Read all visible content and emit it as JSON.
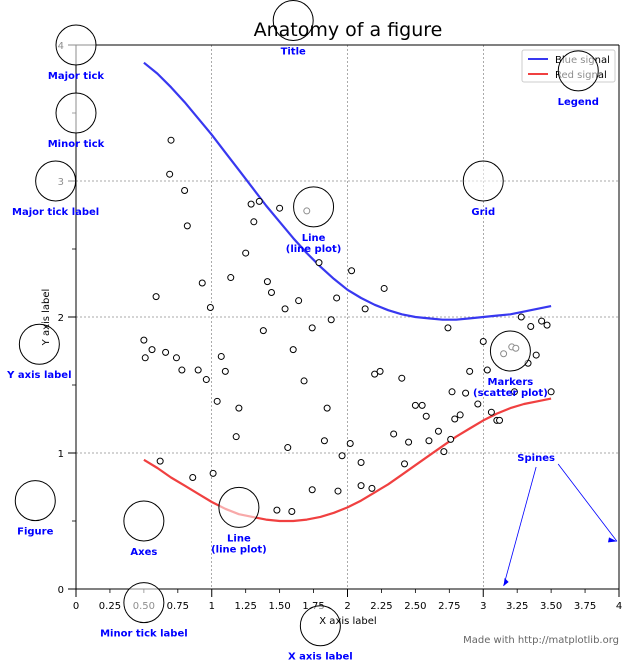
{
  "chart_data": {
    "type": "line",
    "title": "Anatomy of a figure",
    "xlabel": "X axis label",
    "ylabel": "Y axis label",
    "xlim": [
      0,
      4
    ],
    "ylim": [
      0,
      4
    ],
    "grid": true,
    "legend_position": "top-right",
    "major_x_ticks": [
      0,
      1,
      2,
      3,
      4
    ],
    "minor_x_ticks": [
      0.25,
      0.5,
      0.75,
      1.25,
      1.5,
      1.75,
      2.25,
      2.5,
      2.75,
      3.25,
      3.5,
      3.75
    ],
    "major_y_ticks": [
      0,
      1,
      2,
      3,
      4
    ],
    "minor_y_ticks": [
      0.5,
      1.5,
      2.5,
      3.5
    ],
    "x_tick_labels": [
      "0",
      "0.25",
      "0.50",
      "0.75",
      "1",
      "1.25",
      "1.50",
      "1.75",
      "2",
      "2.25",
      "2.50",
      "2.75",
      "3",
      "3.25",
      "3.50",
      "3.75",
      "4"
    ],
    "y_tick_labels": [
      "0",
      "1",
      "2",
      "3",
      "4"
    ],
    "series": [
      {
        "name": "Blue signal",
        "color": "#3838f0",
        "x": [
          0.5,
          0.6,
          0.7,
          0.8,
          0.9,
          1.0,
          1.1,
          1.2,
          1.3,
          1.4,
          1.5,
          1.6,
          1.7,
          1.8,
          1.9,
          2.0,
          2.1,
          2.2,
          2.3,
          2.4,
          2.5,
          2.6,
          2.7,
          2.8,
          2.9,
          3.0,
          3.1,
          3.2,
          3.3,
          3.4,
          3.5
        ],
        "y": [
          3.87,
          3.79,
          3.69,
          3.58,
          3.46,
          3.34,
          3.21,
          3.08,
          2.95,
          2.82,
          2.7,
          2.58,
          2.47,
          2.37,
          2.28,
          2.2,
          2.14,
          2.09,
          2.05,
          2.02,
          2.0,
          1.99,
          1.98,
          1.98,
          1.99,
          2.0,
          2.01,
          2.02,
          2.04,
          2.06,
          2.08
        ]
      },
      {
        "name": "Red signal",
        "color": "#f04040",
        "x": [
          0.5,
          0.6,
          0.7,
          0.8,
          0.9,
          1.0,
          1.1,
          1.2,
          1.3,
          1.4,
          1.5,
          1.6,
          1.7,
          1.8,
          1.9,
          2.0,
          2.1,
          2.2,
          2.3,
          2.4,
          2.5,
          2.6,
          2.7,
          2.8,
          2.9,
          3.0,
          3.1,
          3.2,
          3.3,
          3.4,
          3.5
        ],
        "y": [
          0.95,
          0.89,
          0.82,
          0.76,
          0.7,
          0.64,
          0.59,
          0.55,
          0.53,
          0.51,
          0.5,
          0.5,
          0.51,
          0.53,
          0.56,
          0.6,
          0.65,
          0.71,
          0.77,
          0.84,
          0.91,
          0.98,
          1.05,
          1.12,
          1.18,
          1.24,
          1.29,
          1.33,
          1.36,
          1.38,
          1.4
        ]
      }
    ],
    "scatter": {
      "name": "Markers",
      "points": [
        [
          0.7,
          3.3
        ],
        [
          0.69,
          3.05
        ],
        [
          0.8,
          2.93
        ],
        [
          0.82,
          2.67
        ],
        [
          0.59,
          2.15
        ],
        [
          0.93,
          2.25
        ],
        [
          0.5,
          1.83
        ],
        [
          0.51,
          1.7
        ],
        [
          0.56,
          1.76
        ],
        [
          0.66,
          1.74
        ],
        [
          0.74,
          1.7
        ],
        [
          0.78,
          1.61
        ],
        [
          0.9,
          1.61
        ],
        [
          0.96,
          1.54
        ],
        [
          1.04,
          1.38
        ],
        [
          1.07,
          1.71
        ],
        [
          1.1,
          1.6
        ],
        [
          0.99,
          2.07
        ],
        [
          1.14,
          2.29
        ],
        [
          1.2,
          1.33
        ],
        [
          1.25,
          2.47
        ],
        [
          1.29,
          2.83
        ],
        [
          1.31,
          2.7
        ],
        [
          1.35,
          2.85
        ],
        [
          1.38,
          1.9
        ],
        [
          1.41,
          2.26
        ],
        [
          1.44,
          2.18
        ],
        [
          1.5,
          2.8
        ],
        [
          1.54,
          2.06
        ],
        [
          1.6,
          1.76
        ],
        [
          1.64,
          2.12
        ],
        [
          1.7,
          2.78
        ],
        [
          1.74,
          1.92
        ],
        [
          1.68,
          1.53
        ],
        [
          1.79,
          2.4
        ],
        [
          1.85,
          1.33
        ],
        [
          1.88,
          1.98
        ],
        [
          1.92,
          2.14
        ],
        [
          1.96,
          0.98
        ],
        [
          2.03,
          2.34
        ],
        [
          2.1,
          0.93
        ],
        [
          2.13,
          2.06
        ],
        [
          2.2,
          1.58
        ],
        [
          2.24,
          1.6
        ],
        [
          2.27,
          2.21
        ],
        [
          2.34,
          1.14
        ],
        [
          2.4,
          1.55
        ],
        [
          2.45,
          1.08
        ],
        [
          2.5,
          1.35
        ],
        [
          2.55,
          1.35
        ],
        [
          2.58,
          1.27
        ],
        [
          2.6,
          1.09
        ],
        [
          2.67,
          1.16
        ],
        [
          2.71,
          1.01
        ],
        [
          2.74,
          1.92
        ],
        [
          2.76,
          1.1
        ],
        [
          2.79,
          1.25
        ],
        [
          2.83,
          1.28
        ],
        [
          2.87,
          1.44
        ],
        [
          2.9,
          1.6
        ],
        [
          2.96,
          1.36
        ],
        [
          3.0,
          1.82
        ],
        [
          3.03,
          1.61
        ],
        [
          3.06,
          1.3
        ],
        [
          3.1,
          1.24
        ],
        [
          3.12,
          1.24
        ],
        [
          3.15,
          1.73
        ],
        [
          3.21,
          1.78
        ],
        [
          3.24,
          1.77
        ],
        [
          3.28,
          2.0
        ],
        [
          3.33,
          1.66
        ],
        [
          3.35,
          1.93
        ],
        [
          3.39,
          1.72
        ],
        [
          3.43,
          1.97
        ],
        [
          3.47,
          1.94
        ],
        [
          3.5,
          1.45
        ],
        [
          1.18,
          1.12
        ],
        [
          1.56,
          1.04
        ],
        [
          1.83,
          1.09
        ],
        [
          2.02,
          1.07
        ],
        [
          2.18,
          0.74
        ],
        [
          2.42,
          0.92
        ],
        [
          0.86,
          0.82
        ],
        [
          1.01,
          0.85
        ],
        [
          0.62,
          0.94
        ],
        [
          1.74,
          0.73
        ],
        [
          1.93,
          0.72
        ],
        [
          2.1,
          0.76
        ],
        [
          1.48,
          0.58
        ],
        [
          1.59,
          0.57
        ],
        [
          2.77,
          1.45
        ],
        [
          3.23,
          1.45
        ]
      ]
    },
    "legend": [
      "Blue signal",
      "Red signal"
    ],
    "annotations": [
      {
        "key": "major-tick",
        "label": "Major tick",
        "anchor": [
          0,
          4
        ]
      },
      {
        "key": "minor-tick",
        "label": "Minor tick",
        "anchor": [
          0,
          3.5
        ]
      },
      {
        "key": "major-tick-label",
        "label": "Major tick label",
        "anchor": [
          -0.15,
          3.0
        ]
      },
      {
        "key": "title",
        "label": "Title",
        "anchor": [
          1.6,
          4.18
        ]
      },
      {
        "key": "legend",
        "label": "Legend",
        "anchor": [
          3.7,
          3.81
        ]
      },
      {
        "key": "grid",
        "label": "Grid",
        "anchor": [
          3.0,
          3.0
        ]
      },
      {
        "key": "line-blue",
        "label": "Line\n(line plot)",
        "anchor": [
          1.75,
          2.81
        ]
      },
      {
        "key": "y-axis-label",
        "label": "Y axis label",
        "anchor": [
          -0.27,
          1.8
        ]
      },
      {
        "key": "markers",
        "label": "Markers\n(scatter plot)",
        "anchor": [
          3.2,
          1.75
        ]
      },
      {
        "key": "figure",
        "label": "Figure",
        "anchor": [
          -0.3,
          0.65
        ]
      },
      {
        "key": "axes",
        "label": "Axes",
        "anchor": [
          0.5,
          0.5
        ]
      },
      {
        "key": "line-red",
        "label": "Line\n(line plot)",
        "anchor": [
          1.2,
          0.6
        ]
      },
      {
        "key": "minor-tick-label",
        "label": "Minor tick label",
        "anchor": [
          0.5,
          -0.1
        ]
      },
      {
        "key": "x-axis-label",
        "label": "X axis label",
        "anchor": [
          1.8,
          -0.27
        ]
      },
      {
        "key": "spines",
        "label": "Spines",
        "anchor": [
          3.5,
          0.5
        ]
      }
    ],
    "credit": "Made with http://matplotlib.org"
  }
}
